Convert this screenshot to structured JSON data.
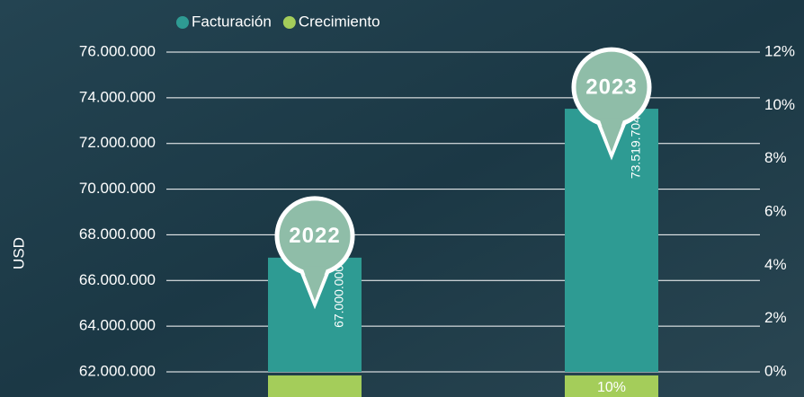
{
  "chart_data": {
    "type": "bar",
    "y_label": "USD",
    "categories": [
      "2022",
      "2023"
    ],
    "series": [
      {
        "name": "Facturación",
        "color": "#2e9b93",
        "values": [
          67000000,
          73519704
        ],
        "value_labels": [
          "67.000.000",
          "73.519.704"
        ]
      },
      {
        "name": "Crecimiento",
        "color": "#a4cd5a",
        "axis": "y2",
        "values": [
          null,
          10
        ],
        "value_labels": [
          null,
          "10%"
        ]
      }
    ],
    "ylim": [
      62000000,
      76000000
    ],
    "yticks": [
      {
        "value": 62000000,
        "label": "62.000.000"
      },
      {
        "value": 64000000,
        "label": "64.000.000"
      },
      {
        "value": 66000000,
        "label": "66.000.000"
      },
      {
        "value": 68000000,
        "label": "68.000.000"
      },
      {
        "value": 70000000,
        "label": "70.000.000"
      },
      {
        "value": 72000000,
        "label": "72.000.000"
      },
      {
        "value": 74000000,
        "label": "74.000.000"
      },
      {
        "value": 76000000,
        "label": "76.000.000"
      }
    ],
    "y2lim": [
      0,
      12
    ],
    "y2ticks": [
      {
        "value": 0,
        "label": "0%"
      },
      {
        "value": 2,
        "label": "2%"
      },
      {
        "value": 4,
        "label": "4%"
      },
      {
        "value": 6,
        "label": "6%"
      },
      {
        "value": 8,
        "label": "8%"
      },
      {
        "value": 10,
        "label": "10%"
      },
      {
        "value": 12,
        "label": "12%"
      }
    ],
    "grid": true
  }
}
